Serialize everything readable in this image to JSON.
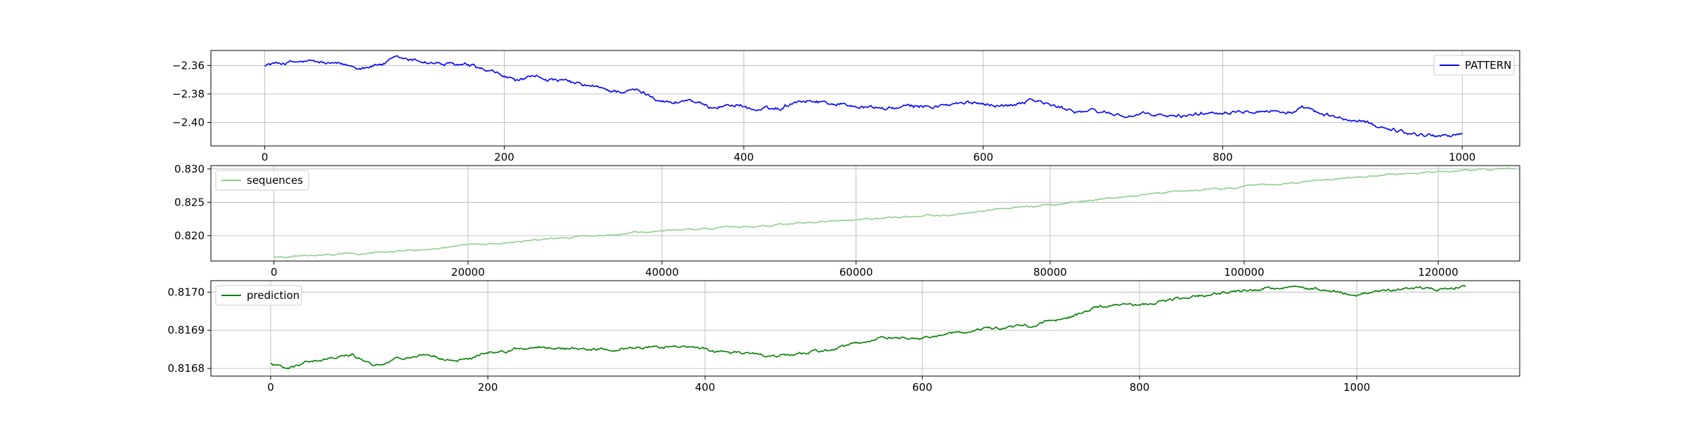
{
  "chart_data": [
    {
      "type": "line",
      "title": "",
      "xlabel": "",
      "ylabel": "",
      "xlim": [
        -45,
        1048
      ],
      "ylim": [
        -2.4165,
        -2.3495
      ],
      "xticks": [
        0,
        200,
        400,
        600,
        800,
        1000
      ],
      "yticks": [
        -2.36,
        -2.38,
        -2.4
      ],
      "ytick_labels": [
        "−2.36",
        "−2.38",
        "−2.40"
      ],
      "grid": true,
      "legend_position": "upper right",
      "series": [
        {
          "name": "PATTERN",
          "color": "#0000ff",
          "x_start": 0,
          "x_end": 1000,
          "anchors": [
            [
              0,
              -2.3595
            ],
            [
              20,
              -2.3578
            ],
            [
              40,
              -2.3575
            ],
            [
              60,
              -2.3596
            ],
            [
              80,
              -2.3612
            ],
            [
              100,
              -2.3585
            ],
            [
              110,
              -2.3555
            ],
            [
              130,
              -2.357
            ],
            [
              150,
              -2.3592
            ],
            [
              170,
              -2.3605
            ],
            [
              190,
              -2.3655
            ],
            [
              210,
              -2.3705
            ],
            [
              230,
              -2.3685
            ],
            [
              250,
              -2.3715
            ],
            [
              270,
              -2.3745
            ],
            [
              290,
              -2.378
            ],
            [
              310,
              -2.3775
            ],
            [
              330,
              -2.3835
            ],
            [
              340,
              -2.3865
            ],
            [
              355,
              -2.3838
            ],
            [
              370,
              -2.3895
            ],
            [
              380,
              -2.3885
            ],
            [
              395,
              -2.3872
            ],
            [
              410,
              -2.3915
            ],
            [
              430,
              -2.3902
            ],
            [
              445,
              -2.3842
            ],
            [
              460,
              -2.3848
            ],
            [
              480,
              -2.3872
            ],
            [
              500,
              -2.3892
            ],
            [
              520,
              -2.3902
            ],
            [
              540,
              -2.389
            ],
            [
              560,
              -2.3885
            ],
            [
              580,
              -2.3872
            ],
            [
              600,
              -2.3862
            ],
            [
              620,
              -2.3882
            ],
            [
              640,
              -2.3832
            ],
            [
              660,
              -2.3892
            ],
            [
              680,
              -2.3918
            ],
            [
              700,
              -2.3928
            ],
            [
              720,
              -2.3955
            ],
            [
              740,
              -2.3945
            ],
            [
              760,
              -2.3962
            ],
            [
              780,
              -2.3938
            ],
            [
              800,
              -2.3922
            ],
            [
              820,
              -2.3905
            ],
            [
              840,
              -2.3918
            ],
            [
              860,
              -2.3928
            ],
            [
              870,
              -2.3902
            ],
            [
              880,
              -2.3945
            ],
            [
              900,
              -2.3975
            ],
            [
              920,
              -2.4005
            ],
            [
              940,
              -2.4042
            ],
            [
              960,
              -2.4082
            ],
            [
              980,
              -2.4092
            ],
            [
              1000,
              -2.4082
            ]
          ],
          "noise": 0.0009
        }
      ]
    },
    {
      "type": "line",
      "title": "",
      "xlabel": "",
      "ylabel": "",
      "xlim": [
        -6500,
        128400
      ],
      "ylim": [
        0.8162,
        0.8305
      ],
      "xticks": [
        0,
        20000,
        40000,
        60000,
        80000,
        100000,
        120000
      ],
      "yticks": [
        0.82,
        0.825,
        0.83
      ],
      "ytick_labels": [
        "0.820",
        "0.825",
        "0.830"
      ],
      "grid": true,
      "legend_position": "upper left",
      "series": [
        {
          "name": "sequences",
          "color": "#8fcf8f",
          "x_start": 0,
          "x_end": 128000,
          "anchors": [
            [
              0,
              0.8168
            ],
            [
              10000,
              0.8174
            ],
            [
              20000,
              0.8185
            ],
            [
              30000,
              0.8197
            ],
            [
              40000,
              0.8207
            ],
            [
              50000,
              0.8215
            ],
            [
              60000,
              0.8223
            ],
            [
              70000,
              0.8232
            ],
            [
              80000,
              0.8247
            ],
            [
              90000,
              0.8262
            ],
            [
              100000,
              0.8273
            ],
            [
              110000,
              0.8286
            ],
            [
              120000,
              0.8296
            ],
            [
              128000,
              0.8301
            ]
          ],
          "noise": 8e-05
        }
      ]
    },
    {
      "type": "line",
      "title": "",
      "xlabel": "",
      "ylabel": "",
      "xlim": [
        -55,
        1150
      ],
      "ylim": [
        0.81678,
        0.81703
      ],
      "xticks": [
        0,
        200,
        400,
        600,
        800,
        1000
      ],
      "yticks": [
        0.8168,
        0.8169,
        0.817
      ],
      "ytick_labels": [
        "0.8168",
        "0.8169",
        "0.8170"
      ],
      "grid": true,
      "legend_position": "upper left",
      "series": [
        {
          "name": "prediction",
          "color": "#008000",
          "x_start": 0,
          "x_end": 1100,
          "anchors": [
            [
              0,
              0.816812
            ],
            [
              15,
              0.816798
            ],
            [
              30,
              0.816815
            ],
            [
              50,
              0.816825
            ],
            [
              75,
              0.816838
            ],
            [
              95,
              0.816802
            ],
            [
              110,
              0.816825
            ],
            [
              140,
              0.816835
            ],
            [
              170,
              0.816818
            ],
            [
              200,
              0.81684
            ],
            [
              250,
              0.816858
            ],
            [
              300,
              0.816848
            ],
            [
              355,
              0.816858
            ],
            [
              400,
              0.81685
            ],
            [
              440,
              0.816835
            ],
            [
              480,
              0.816835
            ],
            [
              520,
              0.81685
            ],
            [
              560,
              0.81688
            ],
            [
              600,
              0.816878
            ],
            [
              650,
              0.8169
            ],
            [
              700,
              0.816912
            ],
            [
              740,
              0.816938
            ],
            [
              760,
              0.816962
            ],
            [
              800,
              0.816968
            ],
            [
              850,
              0.816988
            ],
            [
              880,
              0.816998
            ],
            [
              920,
              0.81701
            ],
            [
              950,
              0.817012
            ],
            [
              1000,
              0.816995
            ],
            [
              1050,
              0.817008
            ],
            [
              1080,
              0.817008
            ],
            [
              1100,
              0.817015
            ]
          ],
          "noise": 2.5e-06
        }
      ]
    }
  ]
}
